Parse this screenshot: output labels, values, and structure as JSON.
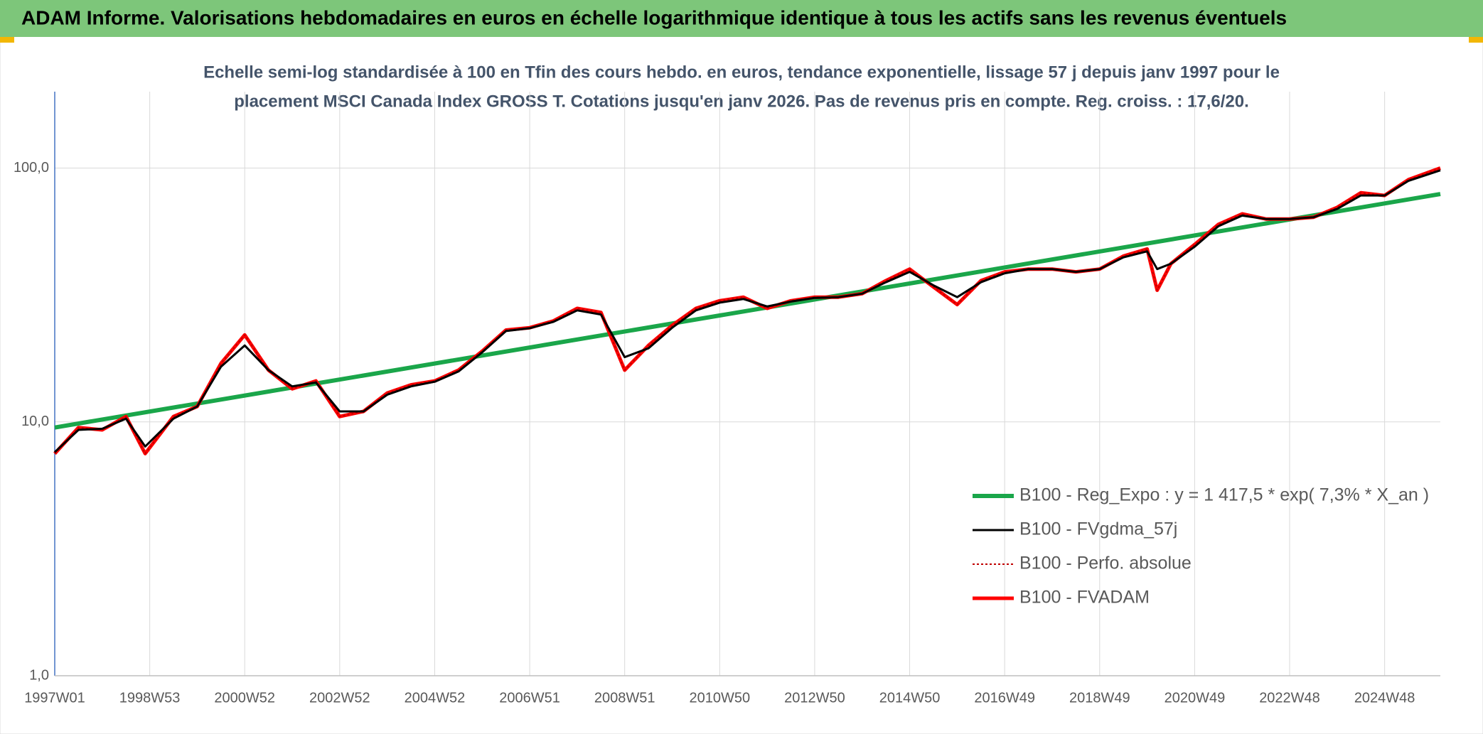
{
  "chart_data": {
    "type": "line",
    "title": "ADAM Informe. Valorisations hebdomadaires en euros en échelle logarithmique identique à tous les actifs sans les revenus éventuels",
    "subtitle": [
      "Echelle semi-log standardisée à 100 en Tfin des cours hebdo. en euros, tendance exponentielle, lissage 57 j depuis janv 1997 pour le",
      "placement MSCI Canada Index GROSS T. Cotations jusqu'en janv 2026. Pas de revenus pris en compte. Reg. croiss. : 17,6/20."
    ],
    "log_scale": true,
    "grid": true,
    "legend": "lower right",
    "xlim": [
      0,
      1517
    ],
    "xticks": [
      {
        "value": 0,
        "label": "1997W01"
      },
      {
        "value": 104,
        "label": "1998W53"
      },
      {
        "value": 208,
        "label": "2000W52"
      },
      {
        "value": 312,
        "label": "2002W52"
      },
      {
        "value": 416,
        "label": "2004W52"
      },
      {
        "value": 520,
        "label": "2006W51"
      },
      {
        "value": 624,
        "label": "2008W51"
      },
      {
        "value": 728,
        "label": "2010W50"
      },
      {
        "value": 832,
        "label": "2012W50"
      },
      {
        "value": 936,
        "label": "2014W50"
      },
      {
        "value": 1040,
        "label": "2016W49"
      },
      {
        "value": 1144,
        "label": "2018W49"
      },
      {
        "value": 1248,
        "label": "2020W49"
      },
      {
        "value": 1352,
        "label": "2022W48"
      },
      {
        "value": 1456,
        "label": "2024W48"
      }
    ],
    "ylim": [
      1,
      200
    ],
    "yticks": [
      {
        "value": 1,
        "label": "1,0"
      },
      {
        "value": 10,
        "label": "10,0"
      },
      {
        "value": 100,
        "label": "100,0"
      }
    ],
    "x": [
      0,
      26,
      52,
      78,
      99,
      130,
      156,
      182,
      208,
      234,
      260,
      286,
      312,
      338,
      364,
      390,
      416,
      442,
      468,
      494,
      520,
      546,
      572,
      598,
      624,
      650,
      676,
      702,
      728,
      754,
      780,
      806,
      832,
      858,
      884,
      910,
      936,
      962,
      988,
      1014,
      1040,
      1066,
      1092,
      1118,
      1144,
      1170,
      1196,
      1207,
      1222,
      1248,
      1274,
      1300,
      1326,
      1352,
      1378,
      1404,
      1430,
      1456,
      1482,
      1517
    ],
    "series": [
      {
        "name": "B100 - Reg_Expo : y = 1 417,5 * exp( 7,3% *  X_an )",
        "color": "#1aa64a",
        "width": 6,
        "x": [
          0,
          1517
        ],
        "values": [
          9.5,
          79
        ]
      },
      {
        "name": "B100 - FVgdma_57j",
        "color": "#000000",
        "width": 3,
        "values": [
          7.6,
          9.3,
          9.4,
          10.3,
          8.0,
          10.3,
          11.5,
          16.5,
          20,
          16,
          13.8,
          14.3,
          11,
          11,
          12.8,
          13.8,
          14.4,
          15.8,
          18.8,
          22.8,
          23.4,
          24.8,
          27.5,
          26.5,
          18,
          19.5,
          23.5,
          27.5,
          29.5,
          30.5,
          28.5,
          29.8,
          30.8,
          31,
          32,
          35.5,
          39,
          34.5,
          31,
          35.5,
          38.5,
          40,
          40,
          39,
          40,
          44.5,
          47,
          40,
          42,
          49,
          59,
          65,
          63,
          63,
          64,
          69,
          78,
          78,
          89,
          98
        ]
      },
      {
        "name": "B100 - Perfo. absolue",
        "color": "#c00000",
        "width": 2,
        "dash": "3,3",
        "values": [
          7.5,
          9.5,
          9.3,
          10.5,
          7.5,
          10.5,
          11.5,
          17,
          22,
          16,
          13.5,
          14.5,
          10.5,
          11,
          13,
          14,
          14.5,
          16,
          19,
          23,
          23.5,
          25,
          28,
          27,
          16,
          20,
          24,
          28,
          30,
          31,
          28,
          30,
          31,
          31,
          32,
          36,
          40,
          34,
          29,
          36,
          39,
          40,
          40,
          39,
          40,
          45,
          48,
          33,
          42,
          50,
          60,
          66,
          63,
          63,
          64,
          70,
          80,
          78,
          90,
          100
        ]
      },
      {
        "name": "B100 - FVADAM",
        "color": "#ff0000",
        "width": 5,
        "values": [
          7.5,
          9.5,
          9.3,
          10.5,
          7.5,
          10.5,
          11.5,
          17,
          22,
          16,
          13.5,
          14.5,
          10.5,
          11,
          13,
          14,
          14.5,
          16,
          19,
          23,
          23.5,
          25,
          28,
          27,
          16,
          20,
          24,
          28,
          30,
          31,
          28,
          30,
          31,
          31,
          32,
          36,
          40,
          34,
          29,
          36,
          39,
          40,
          40,
          39,
          40,
          45,
          48,
          33,
          42,
          50,
          60,
          66,
          63,
          63,
          64,
          70,
          80,
          78,
          90,
          100
        ]
      }
    ]
  }
}
